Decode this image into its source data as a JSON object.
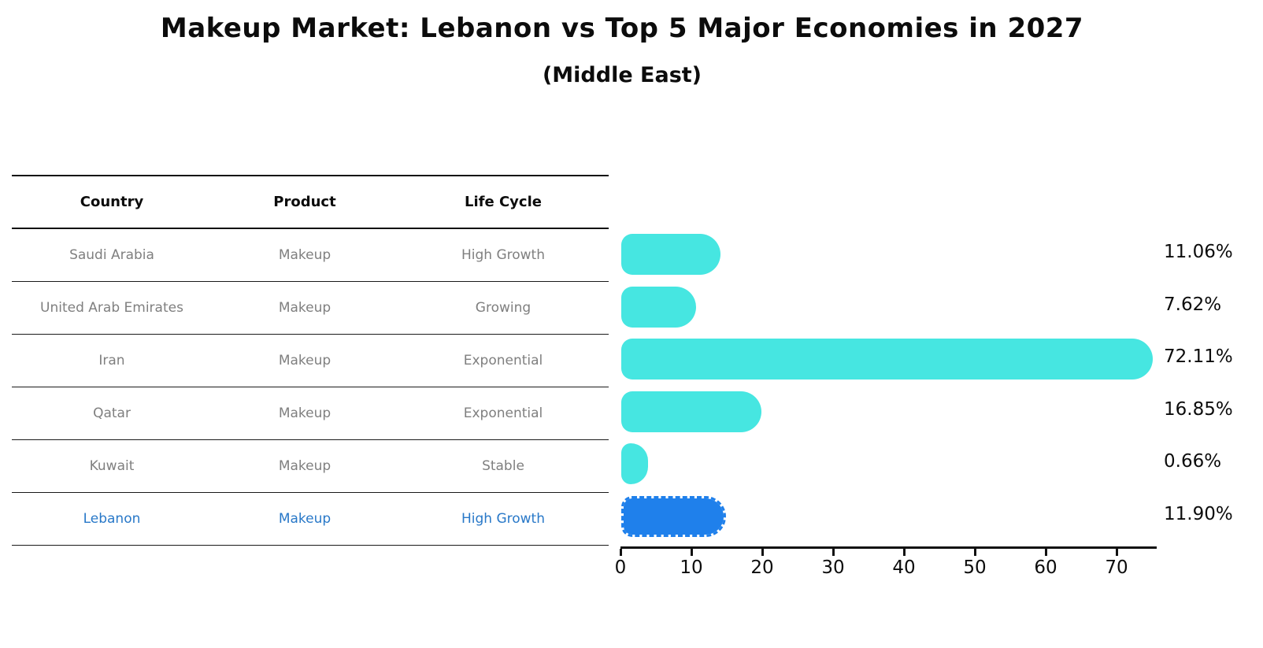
{
  "title": "Makeup Market: Lebanon vs Top 5 Major Economies in 2027",
  "subtitle": "(Middle East)",
  "table": {
    "headers": [
      "Country",
      "Product",
      "Life Cycle"
    ],
    "rows": [
      {
        "country": "Saudi Arabia",
        "product": "Makeup",
        "life_cycle": "High Growth"
      },
      {
        "country": "United Arab Emirates",
        "product": "Makeup",
        "life_cycle": "Growing"
      },
      {
        "country": "Iran",
        "product": "Makeup",
        "life_cycle": "Exponential"
      },
      {
        "country": "Qatar",
        "product": "Makeup",
        "life_cycle": "Exponential"
      },
      {
        "country": "Kuwait",
        "product": "Makeup",
        "life_cycle": "Stable"
      },
      {
        "country": "Lebanon",
        "product": "Makeup",
        "life_cycle": "High Growth"
      }
    ],
    "highlighted_row": "Lebanon"
  },
  "chart_data": {
    "type": "bar",
    "orientation": "horizontal",
    "title": "Makeup Market: Lebanon vs Top 5 Major Economies in 2027",
    "subtitle": "(Middle East)",
    "categories": [
      "Saudi Arabia",
      "United Arab Emirates",
      "Iran",
      "Qatar",
      "Kuwait",
      "Lebanon"
    ],
    "values": [
      11.06,
      7.62,
      72.11,
      16.85,
      0.66,
      11.9
    ],
    "value_labels": [
      "11.06%",
      "7.62%",
      "72.11%",
      "16.85%",
      "0.66%",
      "11.90%"
    ],
    "x_ticks": [
      "0",
      "10",
      "20",
      "30",
      "40",
      "50",
      "60",
      "70"
    ],
    "xlim": [
      0,
      75.5
    ],
    "grid": false,
    "legend": false,
    "bar_color": "#46e6e1",
    "highlight_index": 5,
    "highlight_bar_color": "#1f80eb",
    "highlight_text_color": "#2878c8",
    "axis_color": "#111111",
    "value_label_color": "#0c0c0c",
    "table_text_color": "#7f7f7f"
  }
}
